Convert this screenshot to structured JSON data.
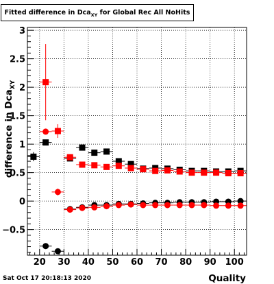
{
  "title": {
    "main": "Fitted difference in Dca",
    "subscript": "XY",
    "suffix": " for Global Rec All NoHits"
  },
  "timestamp": "Sat Oct 17 20:18:13 2020",
  "chart_data": {
    "type": "scatter",
    "xlabel": "Quality",
    "ylabel": "difference in Dca",
    "ylabel_subscript": "XY",
    "xlim": [
      15,
      105
    ],
    "ylim": [
      -0.95,
      3.05
    ],
    "x_ticks": [
      20,
      30,
      40,
      50,
      60,
      70,
      80,
      90,
      100
    ],
    "y_ticks": [
      -0.5,
      0,
      0.5,
      1,
      1.5,
      2,
      2.5,
      3
    ],
    "y_tick_labels": [
      "−0.5",
      "0",
      "0.5",
      "1",
      "1.5",
      "2",
      "2.5",
      "3"
    ],
    "grid": true,
    "x_error": 2.5,
    "series": [
      {
        "marker": "square",
        "color": "#000000",
        "points": [
          {
            "x": 17.5,
            "y": 0.78,
            "err": 0.08
          },
          {
            "x": 22.5,
            "y": 1.03,
            "err": 0
          },
          {
            "x": 32.5,
            "y": 0.75,
            "err": 0.04
          },
          {
            "x": 37.5,
            "y": 0.94,
            "err": 0.03
          },
          {
            "x": 42.5,
            "y": 0.85,
            "err": 0.03
          },
          {
            "x": 47.5,
            "y": 0.87,
            "err": 0.03
          },
          {
            "x": 52.5,
            "y": 0.7,
            "err": 0.02
          },
          {
            "x": 57.5,
            "y": 0.65,
            "err": 0.02
          },
          {
            "x": 62.5,
            "y": 0.57,
            "err": 0.02
          },
          {
            "x": 67.5,
            "y": 0.58,
            "err": 0.02
          },
          {
            "x": 72.5,
            "y": 0.57,
            "err": 0.02
          },
          {
            "x": 77.5,
            "y": 0.55,
            "err": 0.02
          },
          {
            "x": 82.5,
            "y": 0.53,
            "err": 0.02
          },
          {
            "x": 87.5,
            "y": 0.53,
            "err": 0.02
          },
          {
            "x": 92.5,
            "y": 0.52,
            "err": 0.02
          },
          {
            "x": 97.5,
            "y": 0.52,
            "err": 0.02
          },
          {
            "x": 102.5,
            "y": 0.53,
            "err": 0.02
          }
        ]
      },
      {
        "marker": "square",
        "color": "#ff0000",
        "points": [
          {
            "x": 22.5,
            "y": 2.09,
            "err": 0.67
          },
          {
            "x": 27.5,
            "y": 1.23,
            "err": 0.12
          },
          {
            "x": 32.5,
            "y": 0.77,
            "err": 0.04
          },
          {
            "x": 37.5,
            "y": 0.64,
            "err": 0.03
          },
          {
            "x": 42.5,
            "y": 0.63,
            "err": 0.03
          },
          {
            "x": 47.5,
            "y": 0.6,
            "err": 0.03
          },
          {
            "x": 52.5,
            "y": 0.62,
            "err": 0.02
          },
          {
            "x": 57.5,
            "y": 0.58,
            "err": 0.02
          },
          {
            "x": 62.5,
            "y": 0.56,
            "err": 0.02
          },
          {
            "x": 67.5,
            "y": 0.53,
            "err": 0.02
          },
          {
            "x": 72.5,
            "y": 0.54,
            "err": 0.02
          },
          {
            "x": 77.5,
            "y": 0.52,
            "err": 0.02
          },
          {
            "x": 82.5,
            "y": 0.5,
            "err": 0.02
          },
          {
            "x": 87.5,
            "y": 0.5,
            "err": 0.02
          },
          {
            "x": 92.5,
            "y": 0.5,
            "err": 0.02
          },
          {
            "x": 97.5,
            "y": 0.49,
            "err": 0.02
          },
          {
            "x": 102.5,
            "y": 0.49,
            "err": 0.02
          }
        ]
      },
      {
        "marker": "circle",
        "color": "#000000",
        "points": [
          {
            "x": 22.5,
            "y": -0.79,
            "err": 0.04
          },
          {
            "x": 27.5,
            "y": -0.88,
            "err": 0.03
          },
          {
            "x": 32.5,
            "y": -0.14,
            "err": 0.03
          },
          {
            "x": 37.5,
            "y": -0.11,
            "err": 0.02
          },
          {
            "x": 42.5,
            "y": -0.07,
            "err": 0.02
          },
          {
            "x": 47.5,
            "y": -0.07,
            "err": 0.02
          },
          {
            "x": 52.5,
            "y": -0.05,
            "err": 0.02
          },
          {
            "x": 57.5,
            "y": -0.05,
            "err": 0.02
          },
          {
            "x": 62.5,
            "y": -0.04,
            "err": 0.02
          },
          {
            "x": 67.5,
            "y": -0.03,
            "err": 0.02
          },
          {
            "x": 72.5,
            "y": -0.03,
            "err": 0.02
          },
          {
            "x": 77.5,
            "y": -0.02,
            "err": 0.02
          },
          {
            "x": 82.5,
            "y": -0.02,
            "err": 0.02
          },
          {
            "x": 87.5,
            "y": -0.02,
            "err": 0.02
          },
          {
            "x": 92.5,
            "y": -0.01,
            "err": 0.02
          },
          {
            "x": 97.5,
            "y": -0.01,
            "err": 0.02
          },
          {
            "x": 102.5,
            "y": 0.0,
            "err": 0.02
          }
        ]
      },
      {
        "marker": "circle",
        "color": "#ff0000",
        "points": [
          {
            "x": 22.5,
            "y": 1.22,
            "err": 0
          },
          {
            "x": 27.5,
            "y": 0.16,
            "err": 0.06
          },
          {
            "x": 32.5,
            "y": -0.15,
            "err": 0.03
          },
          {
            "x": 37.5,
            "y": -0.12,
            "err": 0.02
          },
          {
            "x": 42.5,
            "y": -0.11,
            "err": 0.02
          },
          {
            "x": 47.5,
            "y": -0.09,
            "err": 0.02
          },
          {
            "x": 52.5,
            "y": -0.07,
            "err": 0.02
          },
          {
            "x": 57.5,
            "y": -0.06,
            "err": 0.02
          },
          {
            "x": 62.5,
            "y": -0.07,
            "err": 0.02
          },
          {
            "x": 67.5,
            "y": -0.07,
            "err": 0.02
          },
          {
            "x": 72.5,
            "y": -0.07,
            "err": 0.02
          },
          {
            "x": 77.5,
            "y": -0.07,
            "err": 0.02
          },
          {
            "x": 82.5,
            "y": -0.07,
            "err": 0.02
          },
          {
            "x": 87.5,
            "y": -0.07,
            "err": 0.02
          },
          {
            "x": 92.5,
            "y": -0.08,
            "err": 0.02
          },
          {
            "x": 97.5,
            "y": -0.08,
            "err": 0.02
          },
          {
            "x": 102.5,
            "y": -0.08,
            "err": 0.02
          }
        ]
      }
    ]
  }
}
